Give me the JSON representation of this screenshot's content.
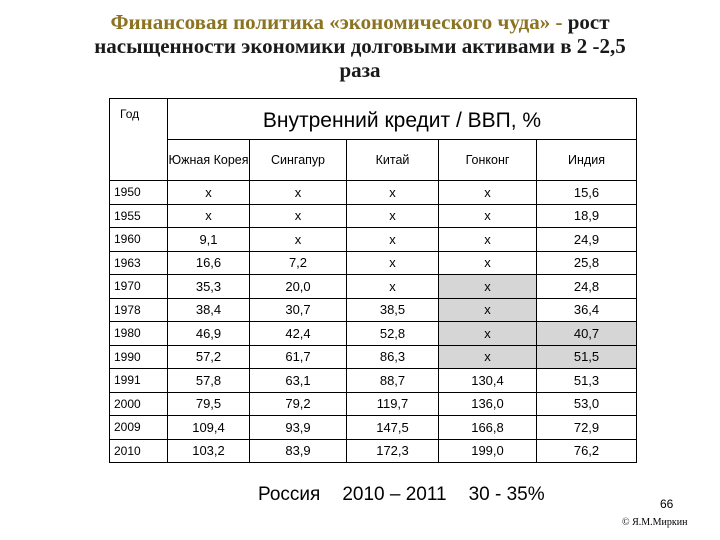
{
  "title": {
    "part1": "Финансовая политика «экономического чуда» - ",
    "part2": "рост",
    "line2": "насыщенности экономики долговыми активами в 2 -2,5",
    "line3": "раза"
  },
  "table": {
    "year_header": "Год",
    "main_header": "Внутренний кредит / ВВП, %",
    "columns": [
      "Южная Корея",
      "Сингапур",
      "Китай",
      "Гонконг",
      "Индия"
    ],
    "rows": [
      {
        "year": "1950",
        "values": [
          "x",
          "x",
          "x",
          "x",
          "15,6"
        ]
      },
      {
        "year": "1955",
        "values": [
          "x",
          "x",
          "x",
          "x",
          "18,9"
        ]
      },
      {
        "year": "1960",
        "values": [
          "9,1",
          "x",
          "x",
          "x",
          "24,9"
        ]
      },
      {
        "year": "1963",
        "values": [
          "16,6",
          "7,2",
          "x",
          "x",
          "25,8"
        ]
      },
      {
        "year": "1970",
        "values": [
          "35,3",
          "20,0",
          "x",
          "x",
          "24,8"
        ]
      },
      {
        "year": "1978",
        "values": [
          "38,4",
          "30,7",
          "38,5",
          "x",
          "36,4"
        ]
      },
      {
        "year": "1980",
        "values": [
          "46,9",
          "42,4",
          "52,8",
          "x",
          "40,7"
        ]
      },
      {
        "year": "1990",
        "values": [
          "57,2",
          "61,7",
          "86,3",
          "x",
          "51,5"
        ]
      },
      {
        "year": "1991",
        "values": [
          "57,8",
          "63,1",
          "88,7",
          "130,4",
          "51,3"
        ]
      },
      {
        "year": "2000",
        "values": [
          "79,5",
          "79,2",
          "119,7",
          "136,0",
          "53,0"
        ]
      },
      {
        "year": "2009",
        "values": [
          "109,4",
          "93,9",
          "147,5",
          "166,8",
          "72,9"
        ]
      },
      {
        "year": "2010",
        "values": [
          "103,2",
          "83,9",
          "172,3",
          "199,0",
          "76,2"
        ]
      }
    ]
  },
  "footer": {
    "country": "Россия",
    "period": "2010 – 2011",
    "range": "30 - 35%"
  },
  "page_number": "66",
  "copyright": "© Я.М.Миркин",
  "colors": {
    "title_accent": "#8b7320",
    "shade": "#d6d6d6"
  }
}
